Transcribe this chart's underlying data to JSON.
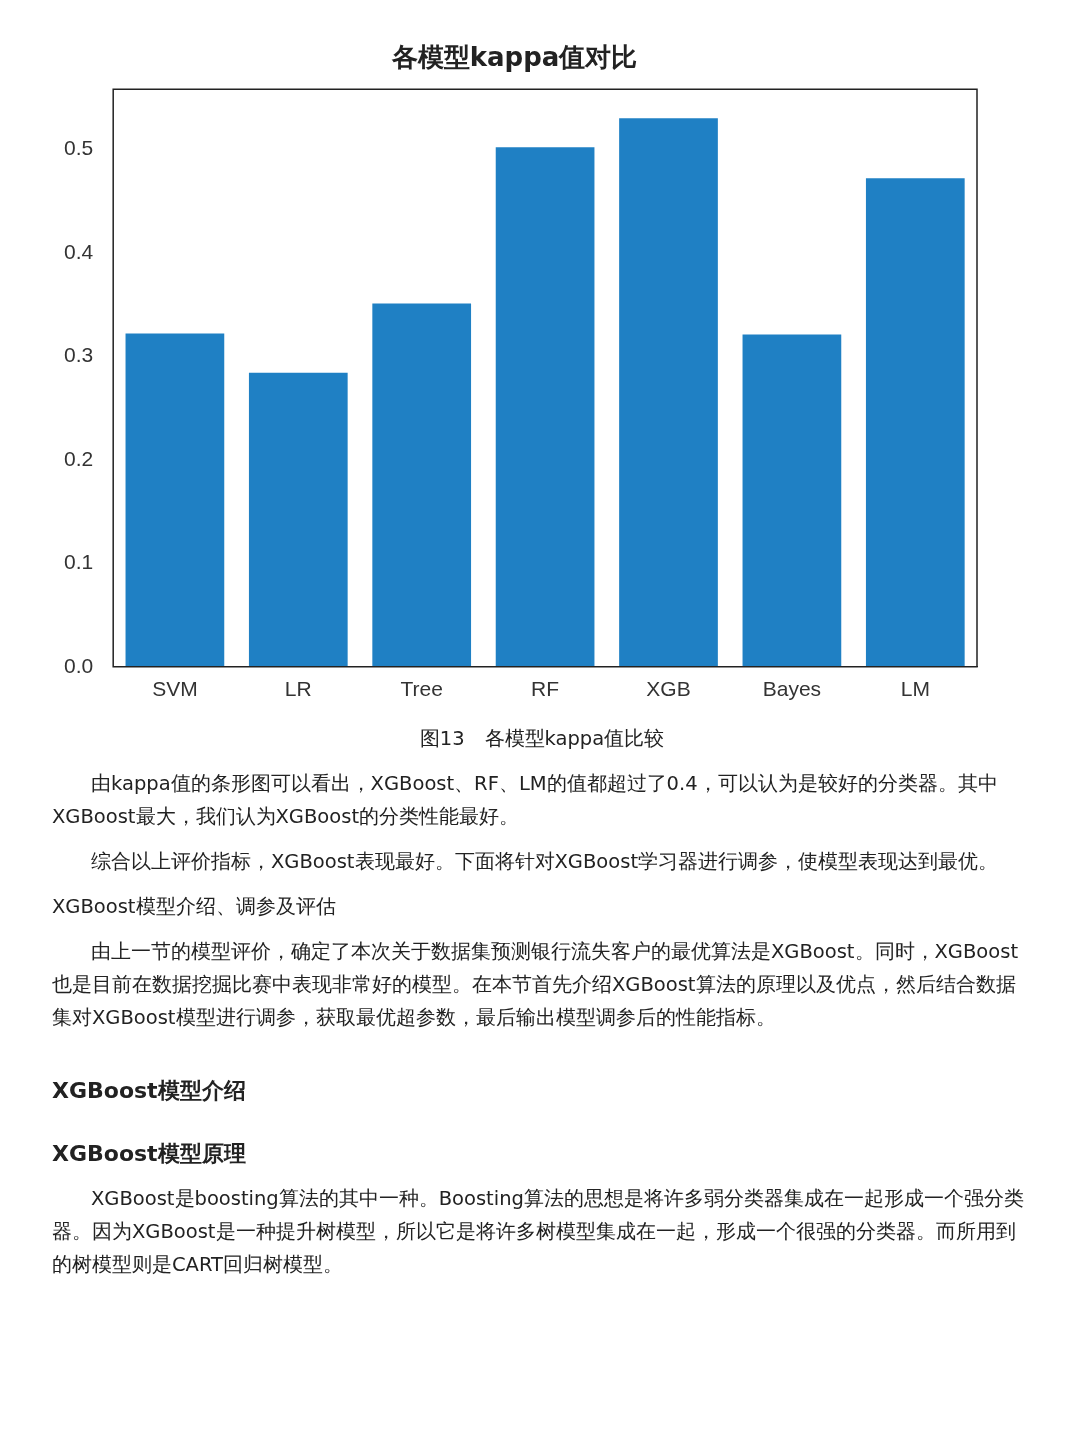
{
  "chart_data": {
    "type": "bar",
    "title": "各模型kappa值对比",
    "categories": [
      "SVM",
      "LR",
      "Tree",
      "RF",
      "XGB",
      "Bayes",
      "LM"
    ],
    "values": [
      0.322,
      0.284,
      0.351,
      0.502,
      0.53,
      0.321,
      0.472
    ],
    "color": "#1f80c4",
    "ylim": [
      0,
      0.558
    ],
    "yticks": [
      {
        "value": 0,
        "label": "0.0"
      },
      0.1,
      0.2,
      0.3,
      0.4,
      0.5
    ],
    "grid": false,
    "legend": false,
    "annotations": [
      "图13　各模型kappa值比较",
      "由kappa值的条形图可以看出，XGBoost、RF、LM的值都超过了0.4，可以认为是较好的分类器。其中XGBoost最大，我们认为XGBoost的分类性能最好。",
      "综合以上评价指标，XGBoost表现最好。下面将针对XGBoost学习器进行调参，使模型表现达到最优。",
      "XGBoost模型介绍、调参及评估",
      "由上一节的模型评价，确定了本次关于数据集预测银行流失客户的最优算法是XGBoost。同时，XGBoost也是目前在数据挖掘比赛中表现非常好的模型。在本节首先介绍XGBoost算法的原理以及优点，然后结合数据集对XGBoost模型进行调参，获取最优超参数，最后输出模型调参后的性能指标。",
      "XGBoost模型介绍",
      "XGBoost模型原理",
      "XGBoost是boosting算法的其中一种。Boosting算法的思想是将许多弱分类器集成在一起形成一个强分类器。因为XGBoost是一种提升树模型，所以它是将许多树模型集成在一起，形成一个很强的分类器。而所用到的树模型则是CART回归树模型。"
    ]
  }
}
